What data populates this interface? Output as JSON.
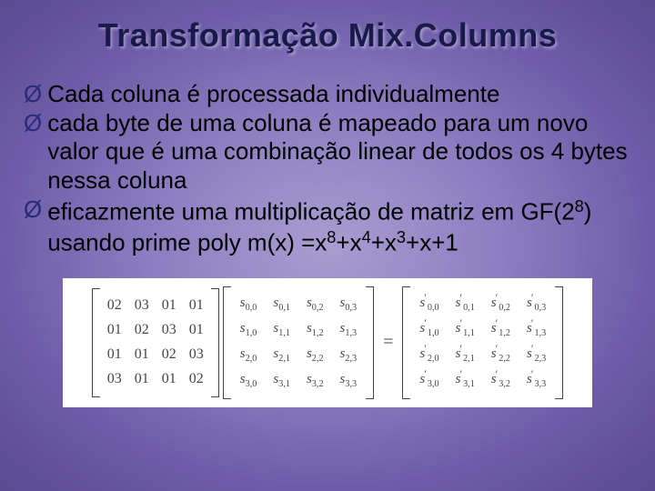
{
  "title": "Transformação Mix.Columns",
  "bullets": [
    {
      "marker": "Ø",
      "text": "Cada coluna é processada individualmente"
    },
    {
      "marker": "Ø",
      "text": "cada byte de uma coluna é mapeado para um novo valor que é uma combinação linear de todos os 4 bytes nessa coluna"
    },
    {
      "marker": "Ø",
      "text_html": "eficazmente uma multiplicação de matriz em GF(2<sup class='sup'>8</sup>) usando prime poly m(x) =x<sup class='sup'>8</sup>+x<sup class='sup'>4</sup>+x<sup class='sup'>3</sup>+x+1"
    }
  ],
  "equation": {
    "equals": "=",
    "coef": [
      [
        "02",
        "03",
        "01",
        "01"
      ],
      [
        "01",
        "02",
        "03",
        "01"
      ],
      [
        "01",
        "01",
        "02",
        "03"
      ],
      [
        "03",
        "01",
        "01",
        "02"
      ]
    ],
    "state_rows": [
      "0",
      "1",
      "2",
      "3"
    ],
    "state_cols": [
      "0",
      "1",
      "2",
      "3"
    ]
  },
  "colors": {
    "title_color": "#1a1a4a",
    "bullet_marker": "#2a2a7a",
    "text": "#000000",
    "matrix_bg": "#ffffff",
    "matrix_text": "#444444",
    "bg_gradient": [
      "#a89dd1",
      "#8a7cc0",
      "#6e5ca8",
      "#5a4a90"
    ]
  },
  "fontsize": {
    "title": 36,
    "body": 26,
    "matrix": 15,
    "eq": 20
  }
}
